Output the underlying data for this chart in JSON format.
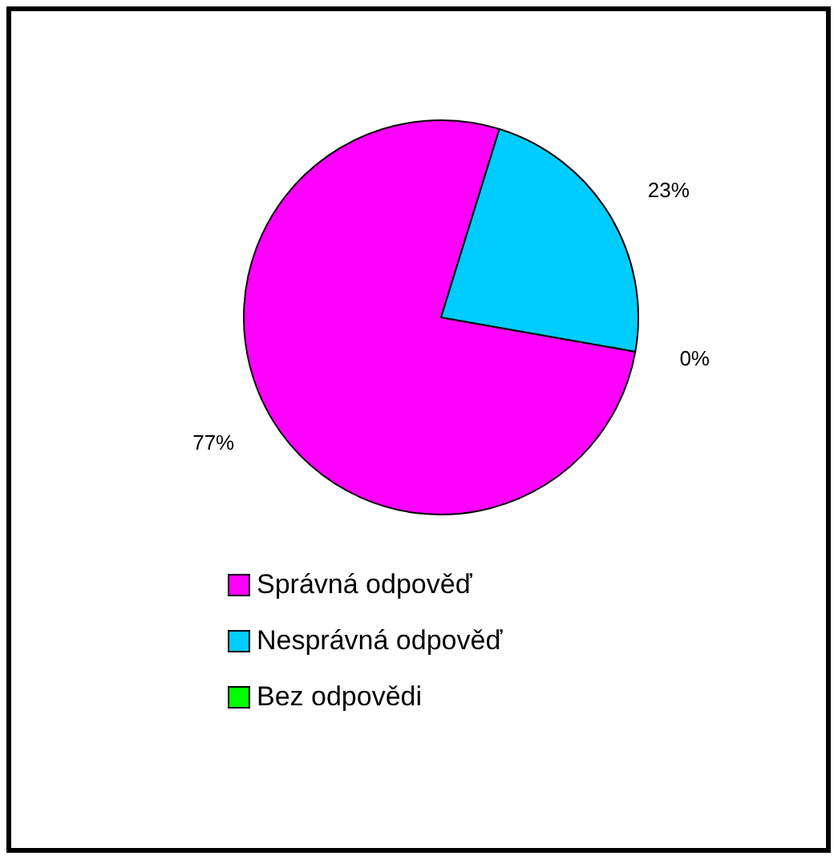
{
  "chart_data": {
    "type": "pie",
    "categories": [
      "Správná odpověď",
      "Nesprávná odpověď",
      "Bez odpovědi"
    ],
    "values": [
      77,
      23,
      0
    ],
    "colors": [
      "#ff00ff",
      "#00ccff",
      "#00ff00"
    ],
    "value_labels": [
      "77%",
      "23%",
      "0%"
    ],
    "legend": "bottom"
  }
}
